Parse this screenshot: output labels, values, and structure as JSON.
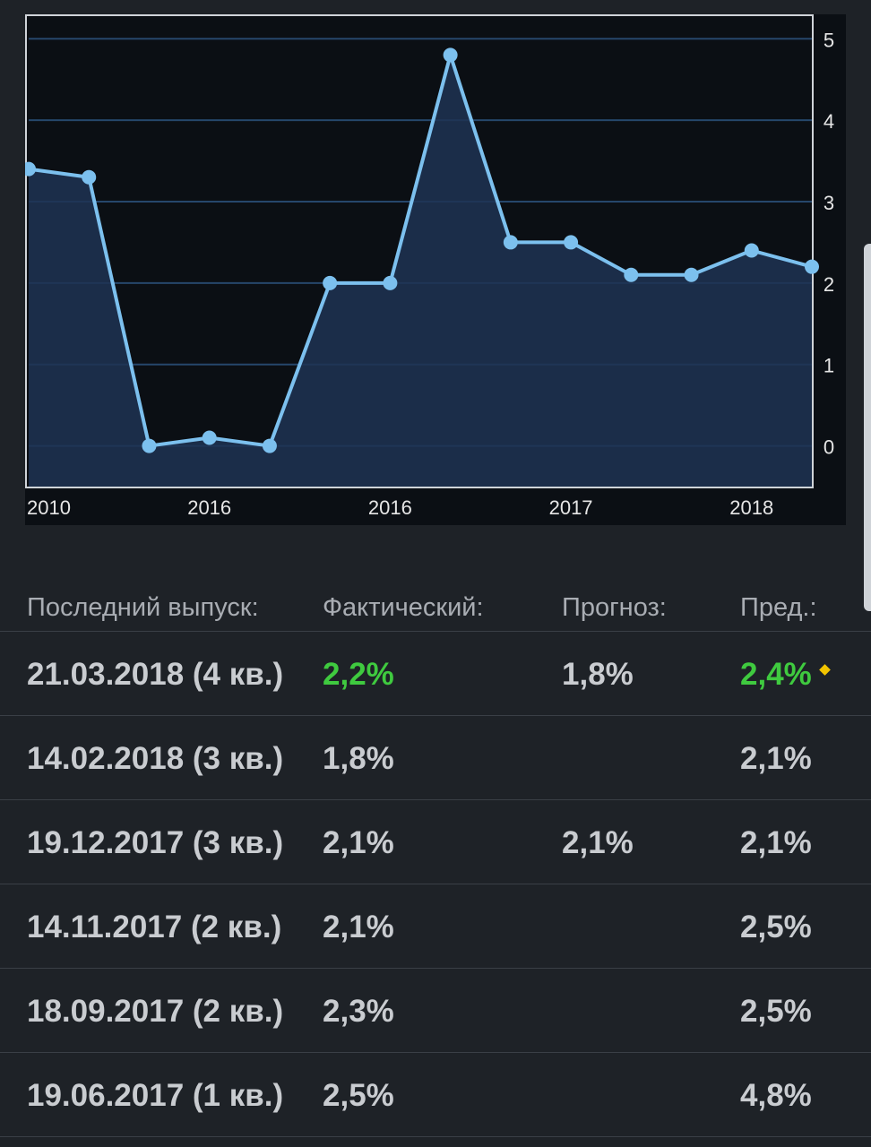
{
  "chart_data": {
    "type": "area",
    "x_tick_labels": [
      "2010",
      "2016",
      "2016",
      "2017",
      "2018"
    ],
    "y_ticks": [
      0,
      1,
      2,
      3,
      4,
      5
    ],
    "ylim": [
      -0.5,
      5.3
    ],
    "values": [
      3.4,
      3.3,
      0.0,
      0.1,
      0.0,
      2.0,
      2.0,
      4.8,
      2.5,
      2.5,
      2.1,
      2.1,
      2.4,
      2.2
    ],
    "grid": true,
    "y_axis_side": "right",
    "colors": {
      "line": "#7cc0ee",
      "area": "#1f3352",
      "grid": "#26476b",
      "background": "#0b0f14",
      "tick_text": "#e6e6e6"
    }
  },
  "table": {
    "headers": [
      "Последний выпуск:",
      "Фактический:",
      "Прогноз:",
      "Пред.:"
    ],
    "rows": [
      {
        "date": "21.03.2018 (4 кв.)",
        "actual": "2,2%",
        "forecast": "1,8%",
        "previous": "2,4%",
        "actual_green": true,
        "previous_green": true,
        "revised": true
      },
      {
        "date": "14.02.2018 (3 кв.)",
        "actual": "1,8%",
        "forecast": "",
        "previous": "2,1%"
      },
      {
        "date": "19.12.2017 (3 кв.)",
        "actual": "2,1%",
        "forecast": "2,1%",
        "previous": "2,1%"
      },
      {
        "date": "14.11.2017 (2 кв.)",
        "actual": "2,1%",
        "forecast": "",
        "previous": "2,5%"
      },
      {
        "date": "18.09.2017 (2 кв.)",
        "actual": "2,3%",
        "forecast": "",
        "previous": "2,5%"
      },
      {
        "date": "19.06.2017 (1 кв.)",
        "actual": "2,5%",
        "forecast": "",
        "previous": "4,8%"
      }
    ]
  },
  "colors": {
    "background": "#1e2227",
    "positive": "#3fca3f",
    "revised_marker": "#f2c400"
  }
}
